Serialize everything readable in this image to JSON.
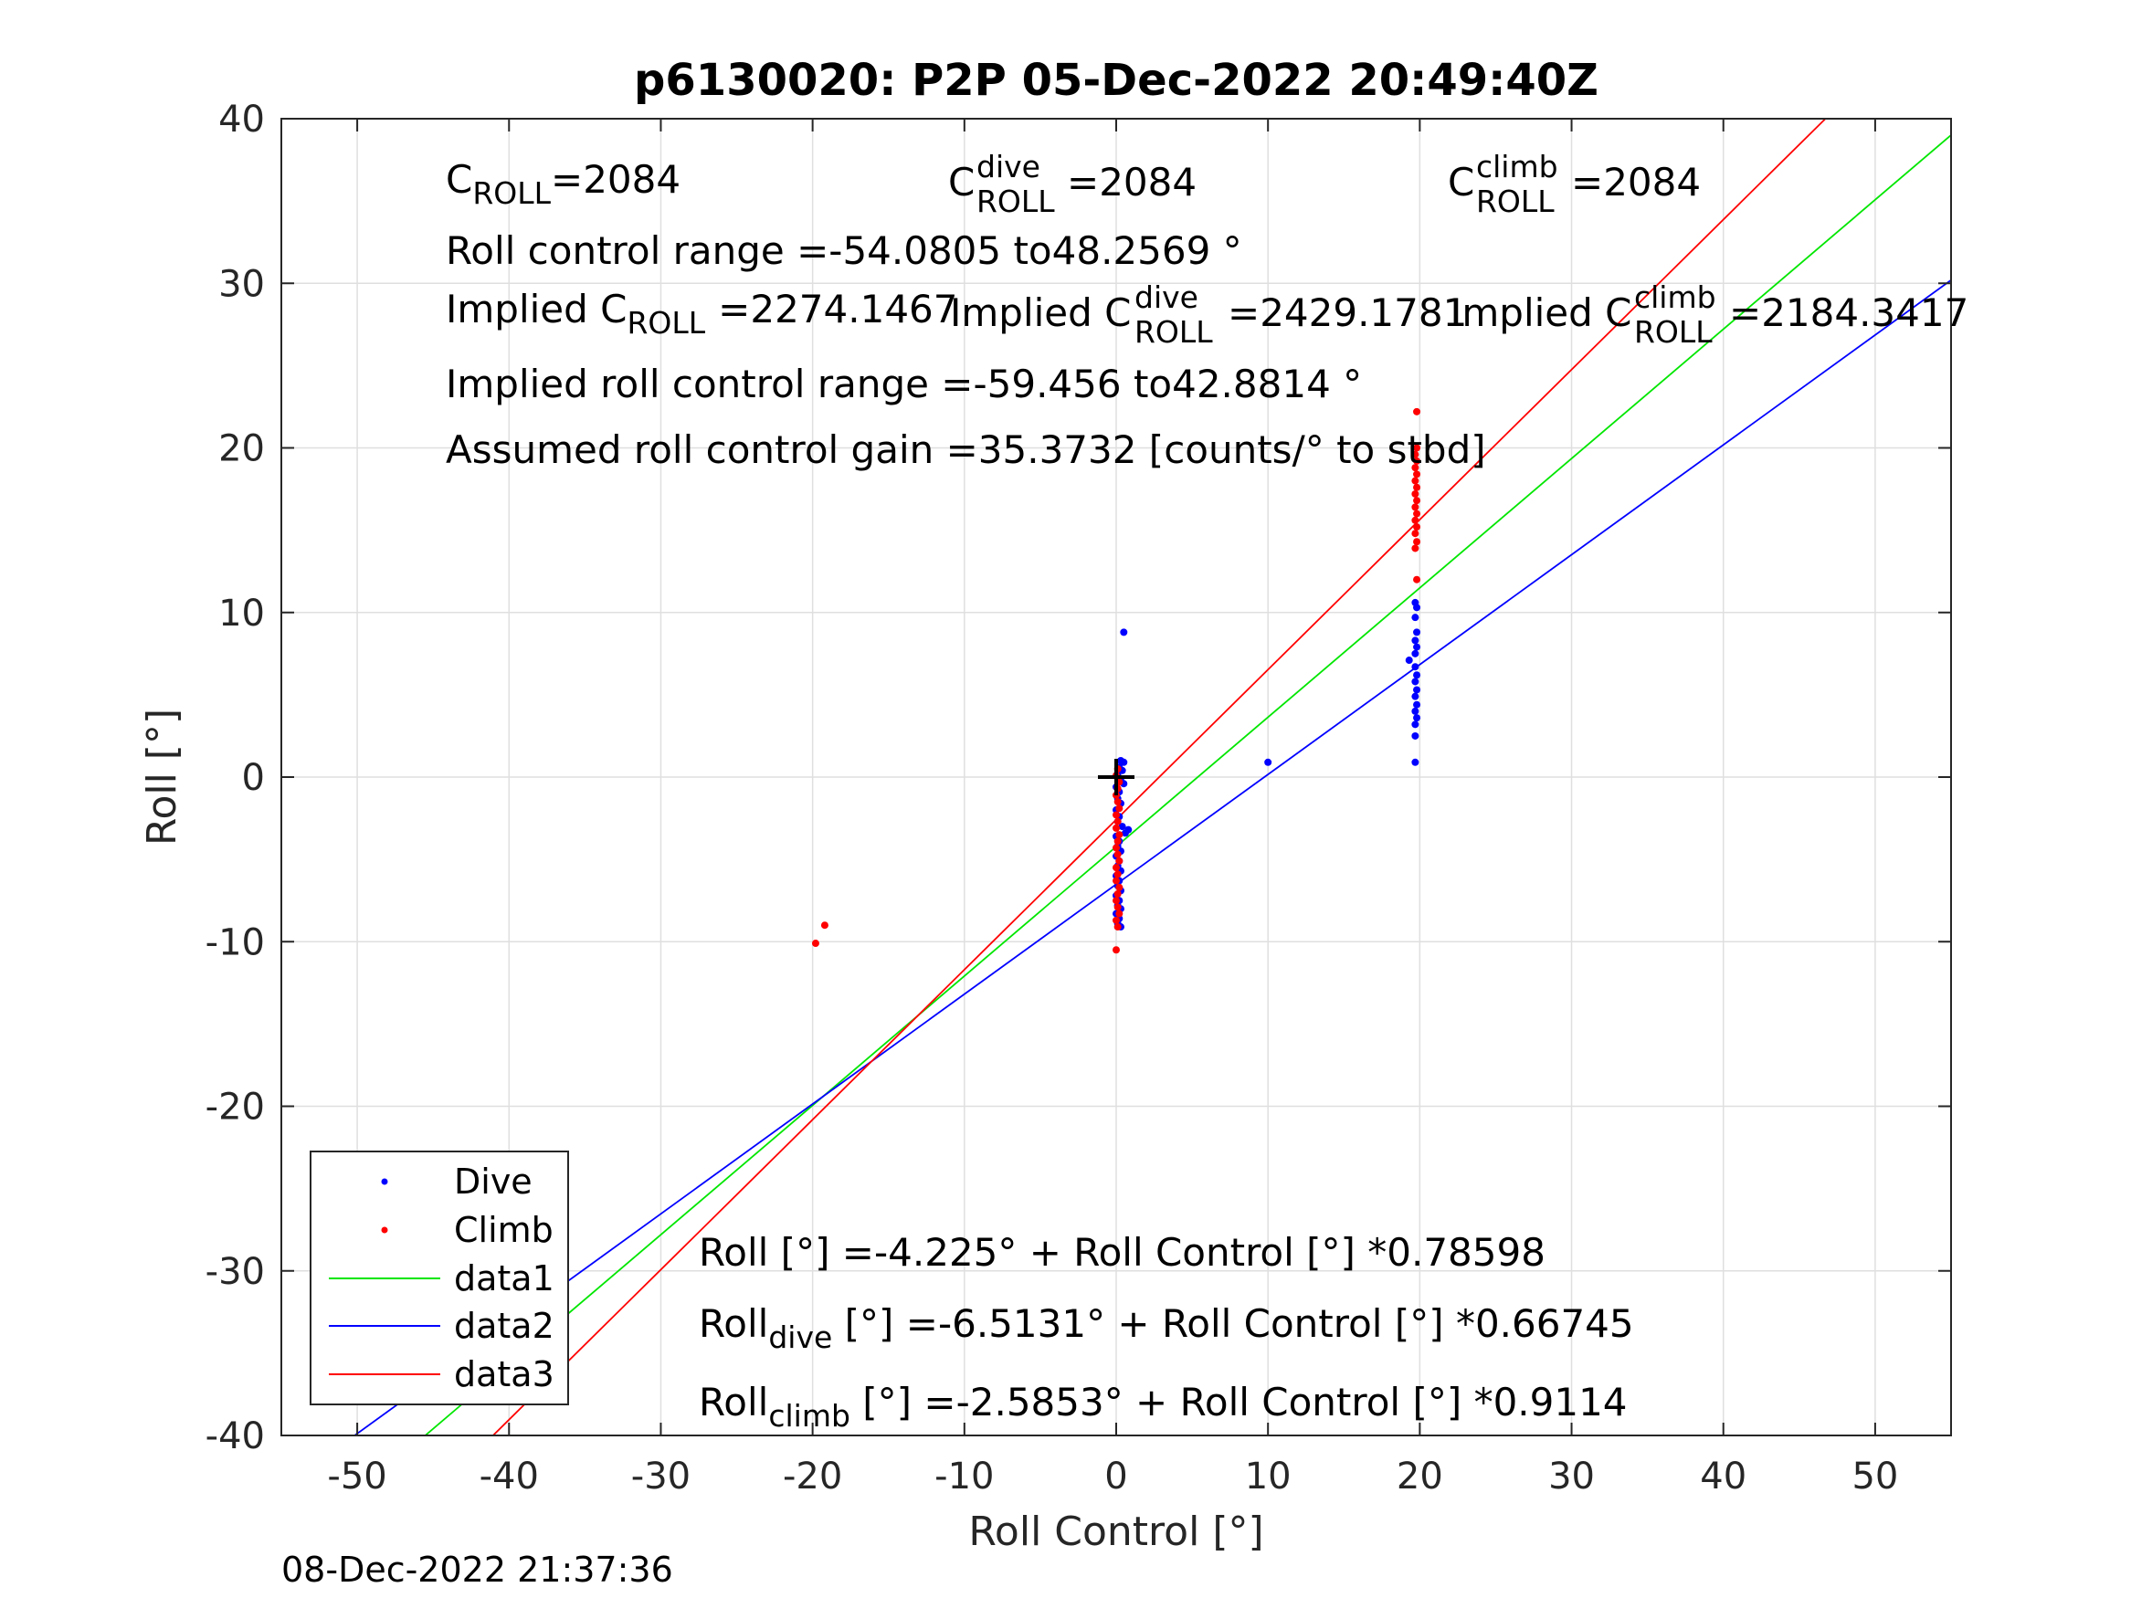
{
  "chart_data": {
    "type": "scatter",
    "title": "p6130020: P2P 05-Dec-2022 20:49:40Z",
    "xlabel": "Roll Control [°]",
    "ylabel": "Roll [°]",
    "xlim": [
      -55,
      55
    ],
    "ylim": [
      -40,
      40
    ],
    "xticks": [
      -50,
      -40,
      -30,
      -20,
      -10,
      0,
      10,
      20,
      30,
      40,
      50
    ],
    "yticks": [
      -40,
      -30,
      -20,
      -10,
      0,
      10,
      20,
      30,
      40
    ],
    "xtick_labels": [
      "-50",
      "-40",
      "-30",
      "-20",
      "-10",
      "0",
      "10",
      "20",
      "30",
      "40",
      "50"
    ],
    "ytick_labels": [
      "-40",
      "-30",
      "-20",
      "-10",
      "0",
      "10",
      "20",
      "30",
      "40"
    ],
    "grid": true,
    "legend_position": "bottom-left",
    "series": [
      {
        "name": "Dive",
        "kind": "points",
        "color": "#0000ff",
        "points": [
          [
            0.5,
            8.8
          ],
          [
            0.3,
            1.0
          ],
          [
            0.5,
            0.9
          ],
          [
            0.2,
            0.6
          ],
          [
            0.4,
            0.4
          ],
          [
            0.1,
            0.1
          ],
          [
            0.3,
            -0.2
          ],
          [
            0.5,
            -0.4
          ],
          [
            0.0,
            -0.6
          ],
          [
            0.2,
            -0.9
          ],
          [
            0.1,
            -1.3
          ],
          [
            0.3,
            -1.6
          ],
          [
            0.0,
            -2.0
          ],
          [
            0.2,
            -2.4
          ],
          [
            0.1,
            -2.7
          ],
          [
            0.4,
            -3.0
          ],
          [
            0.8,
            -3.2
          ],
          [
            0.6,
            -3.4
          ],
          [
            0.0,
            -3.6
          ],
          [
            0.2,
            -3.9
          ],
          [
            0.1,
            -4.2
          ],
          [
            0.3,
            -4.5
          ],
          [
            0.0,
            -4.8
          ],
          [
            0.2,
            -5.1
          ],
          [
            0.1,
            -5.4
          ],
          [
            0.3,
            -5.7
          ],
          [
            0.0,
            -6.0
          ],
          [
            0.2,
            -6.3
          ],
          [
            0.1,
            -6.6
          ],
          [
            0.3,
            -6.9
          ],
          [
            0.0,
            -7.2
          ],
          [
            0.2,
            -7.5
          ],
          [
            0.1,
            -7.8
          ],
          [
            0.3,
            -8.0
          ],
          [
            0.0,
            -8.3
          ],
          [
            0.2,
            -8.6
          ],
          [
            0.1,
            -8.9
          ],
          [
            0.3,
            -9.1
          ],
          [
            10.0,
            0.9
          ],
          [
            19.7,
            0.9
          ],
          [
            19.7,
            2.5
          ],
          [
            19.7,
            3.2
          ],
          [
            19.8,
            3.6
          ],
          [
            19.7,
            4.0
          ],
          [
            19.8,
            4.4
          ],
          [
            19.7,
            4.9
          ],
          [
            19.8,
            5.3
          ],
          [
            19.7,
            5.8
          ],
          [
            19.8,
            6.2
          ],
          [
            19.7,
            6.7
          ],
          [
            19.3,
            7.1
          ],
          [
            19.7,
            7.5
          ],
          [
            19.8,
            7.9
          ],
          [
            19.7,
            8.3
          ],
          [
            19.8,
            8.8
          ],
          [
            19.7,
            9.7
          ],
          [
            19.8,
            10.3
          ],
          [
            19.7,
            10.6
          ]
        ]
      },
      {
        "name": "Climb",
        "kind": "points",
        "color": "#ff0000",
        "points": [
          [
            -19.8,
            -10.1
          ],
          [
            -19.2,
            -9.0
          ],
          [
            0.0,
            -10.5
          ],
          [
            0.1,
            -9.1
          ],
          [
            0.0,
            -8.7
          ],
          [
            0.2,
            -8.3
          ],
          [
            0.1,
            -7.9
          ],
          [
            0.0,
            -7.5
          ],
          [
            0.1,
            -7.1
          ],
          [
            0.2,
            -6.7
          ],
          [
            0.0,
            -6.3
          ],
          [
            0.1,
            -5.9
          ],
          [
            0.0,
            -5.5
          ],
          [
            0.2,
            -5.1
          ],
          [
            0.1,
            -4.7
          ],
          [
            0.0,
            -4.3
          ],
          [
            0.1,
            -3.9
          ],
          [
            0.2,
            -3.5
          ],
          [
            0.0,
            -3.1
          ],
          [
            0.1,
            -2.7
          ],
          [
            0.0,
            -2.3
          ],
          [
            0.2,
            -1.9
          ],
          [
            0.1,
            -1.5
          ],
          [
            0.0,
            -1.1
          ],
          [
            0.1,
            -0.7
          ],
          [
            0.2,
            -0.3
          ],
          [
            0.0,
            0.1
          ],
          [
            0.1,
            0.5
          ],
          [
            19.8,
            12.0
          ],
          [
            19.7,
            13.9
          ],
          [
            19.8,
            14.3
          ],
          [
            19.7,
            14.8
          ],
          [
            19.8,
            15.2
          ],
          [
            19.7,
            15.6
          ],
          [
            19.8,
            16.0
          ],
          [
            19.7,
            16.4
          ],
          [
            19.8,
            16.8
          ],
          [
            19.7,
            17.2
          ],
          [
            19.8,
            17.6
          ],
          [
            19.7,
            18.0
          ],
          [
            19.8,
            18.4
          ],
          [
            19.7,
            18.8
          ],
          [
            19.8,
            19.2
          ],
          [
            19.7,
            19.6
          ],
          [
            19.8,
            20.0
          ],
          [
            19.8,
            22.2
          ]
        ]
      },
      {
        "name": "data1",
        "kind": "line",
        "color": "#00e600",
        "intercept": -4.225,
        "slope": 0.78598
      },
      {
        "name": "data2",
        "kind": "line",
        "color": "#0000ff",
        "intercept": -6.5131,
        "slope": 0.66745
      },
      {
        "name": "data3",
        "kind": "line",
        "color": "#ff0000",
        "intercept": -2.5853,
        "slope": 0.9114
      }
    ],
    "origin_marker": [
      0,
      0
    ]
  },
  "annotations": {
    "c_roll": {
      "base": "C",
      "sub": "ROLL",
      "value": "=2084"
    },
    "c_roll_dive": {
      "base": "C",
      "sup": "dive",
      "sub": "ROLL",
      "value": "=2084"
    },
    "c_roll_climb": {
      "base": "C",
      "sup": "climb",
      "sub": "ROLL",
      "value": "=2084"
    },
    "roll_control_range": "Roll control range =-54.0805 to48.2569 °",
    "implied_c_roll": {
      "prefix": "Implied C",
      "sub": "ROLL",
      "value": "=2274.1467"
    },
    "implied_c_roll_dive": {
      "prefix": "Implied C",
      "sup": "dive",
      "sub": "ROLL",
      "value": "=2429.1781"
    },
    "implied_c_roll_climb": {
      "prefix": "Implied C",
      "sup": "climb",
      "sub": "ROLL",
      "value": "=2184.3417"
    },
    "implied_range": "Implied roll control range =-59.456 to42.8814 °",
    "assumed_gain": "Assumed roll control gain =35.3732 [counts/° to stbd]",
    "eq_all": "Roll [°] =-4.225° + Roll Control [°] *0.78598",
    "eq_dive": {
      "base": "Roll",
      "sub": "dive",
      "rest": " [°] =-6.5131° + Roll Control [°] *0.66745"
    },
    "eq_climb": {
      "base": "Roll",
      "sub": "climb",
      "rest": " [°] =-2.5853° + Roll Control [°] *0.9114"
    }
  },
  "timestamp": "08-Dec-2022 21:37:36"
}
